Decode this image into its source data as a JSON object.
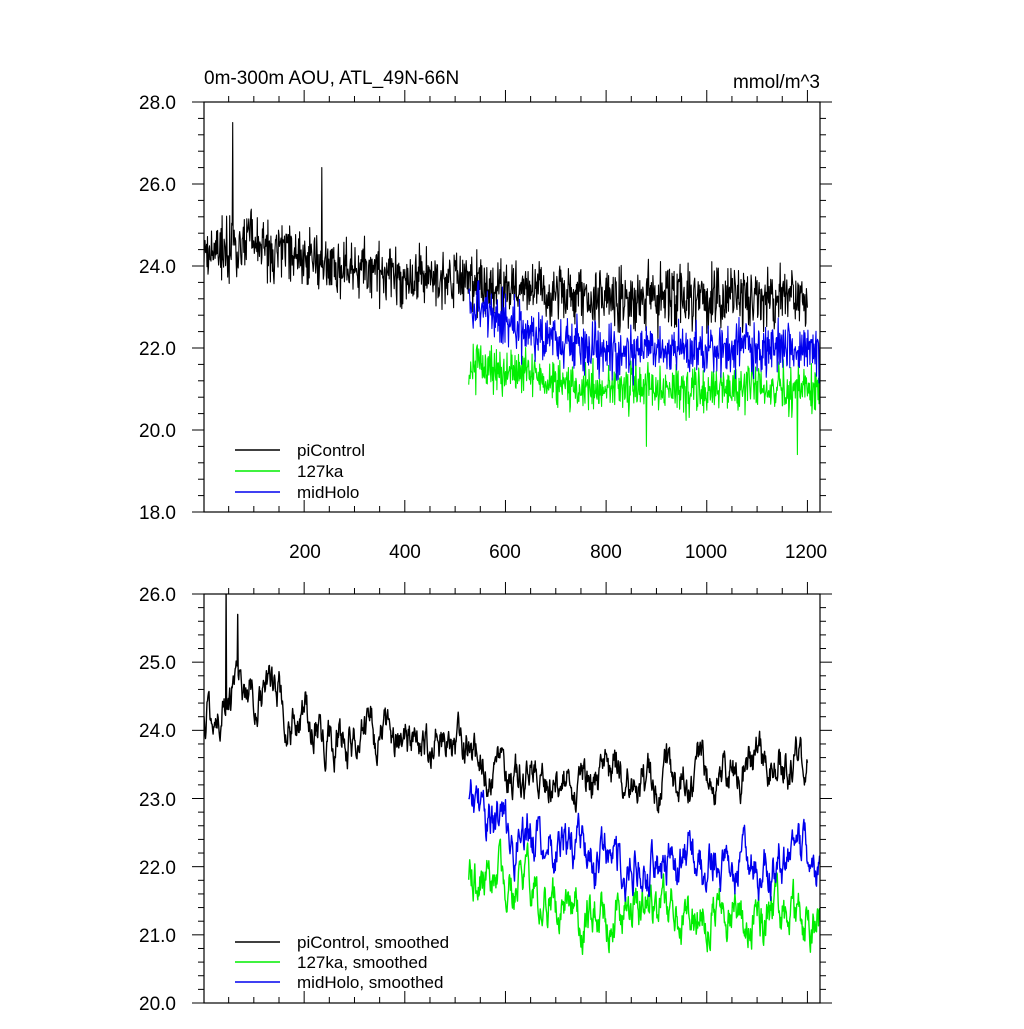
{
  "title_left": "0m-300m AOU, ATL_49N-66N",
  "title_right": "mmol/m^3",
  "colors": {
    "piControl": "#000000",
    "127ka": "#00ee00",
    "midHolo": "#0000ee"
  },
  "chart_data": [
    {
      "type": "line",
      "panel": "top",
      "title": "0m-300m AOU, ATL_49N-66N",
      "units": "mmol/m^3",
      "xlim": [
        1,
        1225
      ],
      "ylim": [
        18,
        28
      ],
      "xticks": [
        200,
        400,
        600,
        800,
        1000,
        1200
      ],
      "xtick_labels": [
        "200",
        "400",
        "600",
        "800",
        "1000",
        "1200"
      ],
      "yticks": [
        18,
        20,
        22,
        24,
        26,
        28
      ],
      "ytick_labels": [
        "18.0",
        "20.0",
        "22.0",
        "24.0",
        "26.0",
        "28.0"
      ],
      "legend": [
        "piControl",
        "127ka",
        "midHolo"
      ],
      "legend_position": "bottom-left",
      "series": [
        {
          "name": "piControl",
          "x_range": [
            1,
            1200
          ],
          "trend": [
            [
              1,
              24.3
            ],
            [
              100,
              24.6
            ],
            [
              250,
              24.0
            ],
            [
              400,
              23.8
            ],
            [
              550,
              23.6
            ],
            [
              700,
              23.3
            ],
            [
              900,
              23.2
            ],
            [
              1200,
              23.2
            ]
          ],
          "noise": 0.65,
          "max_points": [
            [
              58,
              27.5
            ],
            [
              235,
              26.4
            ]
          ]
        },
        {
          "name": "127ka",
          "x_range": [
            527,
            1225
          ],
          "trend": [
            [
              527,
              21.6
            ],
            [
              600,
              21.5
            ],
            [
              700,
              21.1
            ],
            [
              900,
              21.0
            ],
            [
              1225,
              21.0
            ]
          ],
          "noise": 0.5,
          "min_points": [
            [
              880,
              19.6
            ],
            [
              1180,
              19.4
            ]
          ]
        },
        {
          "name": "midHolo",
          "x_range": [
            527,
            1225
          ],
          "trend": [
            [
              527,
              23.0
            ],
            [
              580,
              22.8
            ],
            [
              650,
              22.3
            ],
            [
              800,
              21.9
            ],
            [
              1000,
              22.0
            ],
            [
              1225,
              22.0
            ]
          ],
          "noise": 0.55
        }
      ]
    },
    {
      "type": "line",
      "panel": "bottom",
      "xlim": [
        1,
        1225
      ],
      "ylim": [
        20,
        26
      ],
      "xticks": [
        200,
        400,
        600,
        800,
        1000,
        1200
      ],
      "yticks": [
        20,
        21,
        22,
        23,
        24,
        25,
        26
      ],
      "ytick_labels": [
        "20.0",
        "21.0",
        "22.0",
        "23.0",
        "24.0",
        "25.0",
        "26.0"
      ],
      "legend": [
        "piControl, smoothed",
        "127ka, smoothed",
        "midHolo, smoothed"
      ],
      "legend_position": "bottom-left",
      "series": [
        {
          "name": "piControl, smoothed",
          "x_range": [
            1,
            1200
          ],
          "trend": [
            [
              1,
              24.2
            ],
            [
              60,
              24.6
            ],
            [
              130,
              24.6
            ],
            [
              250,
              23.9
            ],
            [
              400,
              23.8
            ],
            [
              520,
              23.7
            ],
            [
              600,
              23.3
            ],
            [
              700,
              23.2
            ],
            [
              900,
              23.3
            ],
            [
              1200,
              23.5
            ]
          ],
          "noise": 0.22,
          "max_points": [
            [
              45,
              26.0
            ],
            [
              68,
              25.7
            ]
          ]
        },
        {
          "name": "127ka, smoothed",
          "x_range": [
            527,
            1225
          ],
          "trend": [
            [
              527,
              21.8
            ],
            [
              620,
              21.8
            ],
            [
              700,
              21.4
            ],
            [
              800,
              21.3
            ],
            [
              1000,
              21.3
            ],
            [
              1225,
              21.2
            ]
          ],
          "noise": 0.25
        },
        {
          "name": "midHolo, smoothed",
          "x_range": [
            527,
            1225
          ],
          "trend": [
            [
              527,
              23.0
            ],
            [
              600,
              22.5
            ],
            [
              700,
              22.4
            ],
            [
              800,
              22.0
            ],
            [
              1000,
              22.0
            ],
            [
              1225,
              22.1
            ]
          ],
          "noise": 0.25
        }
      ]
    }
  ]
}
